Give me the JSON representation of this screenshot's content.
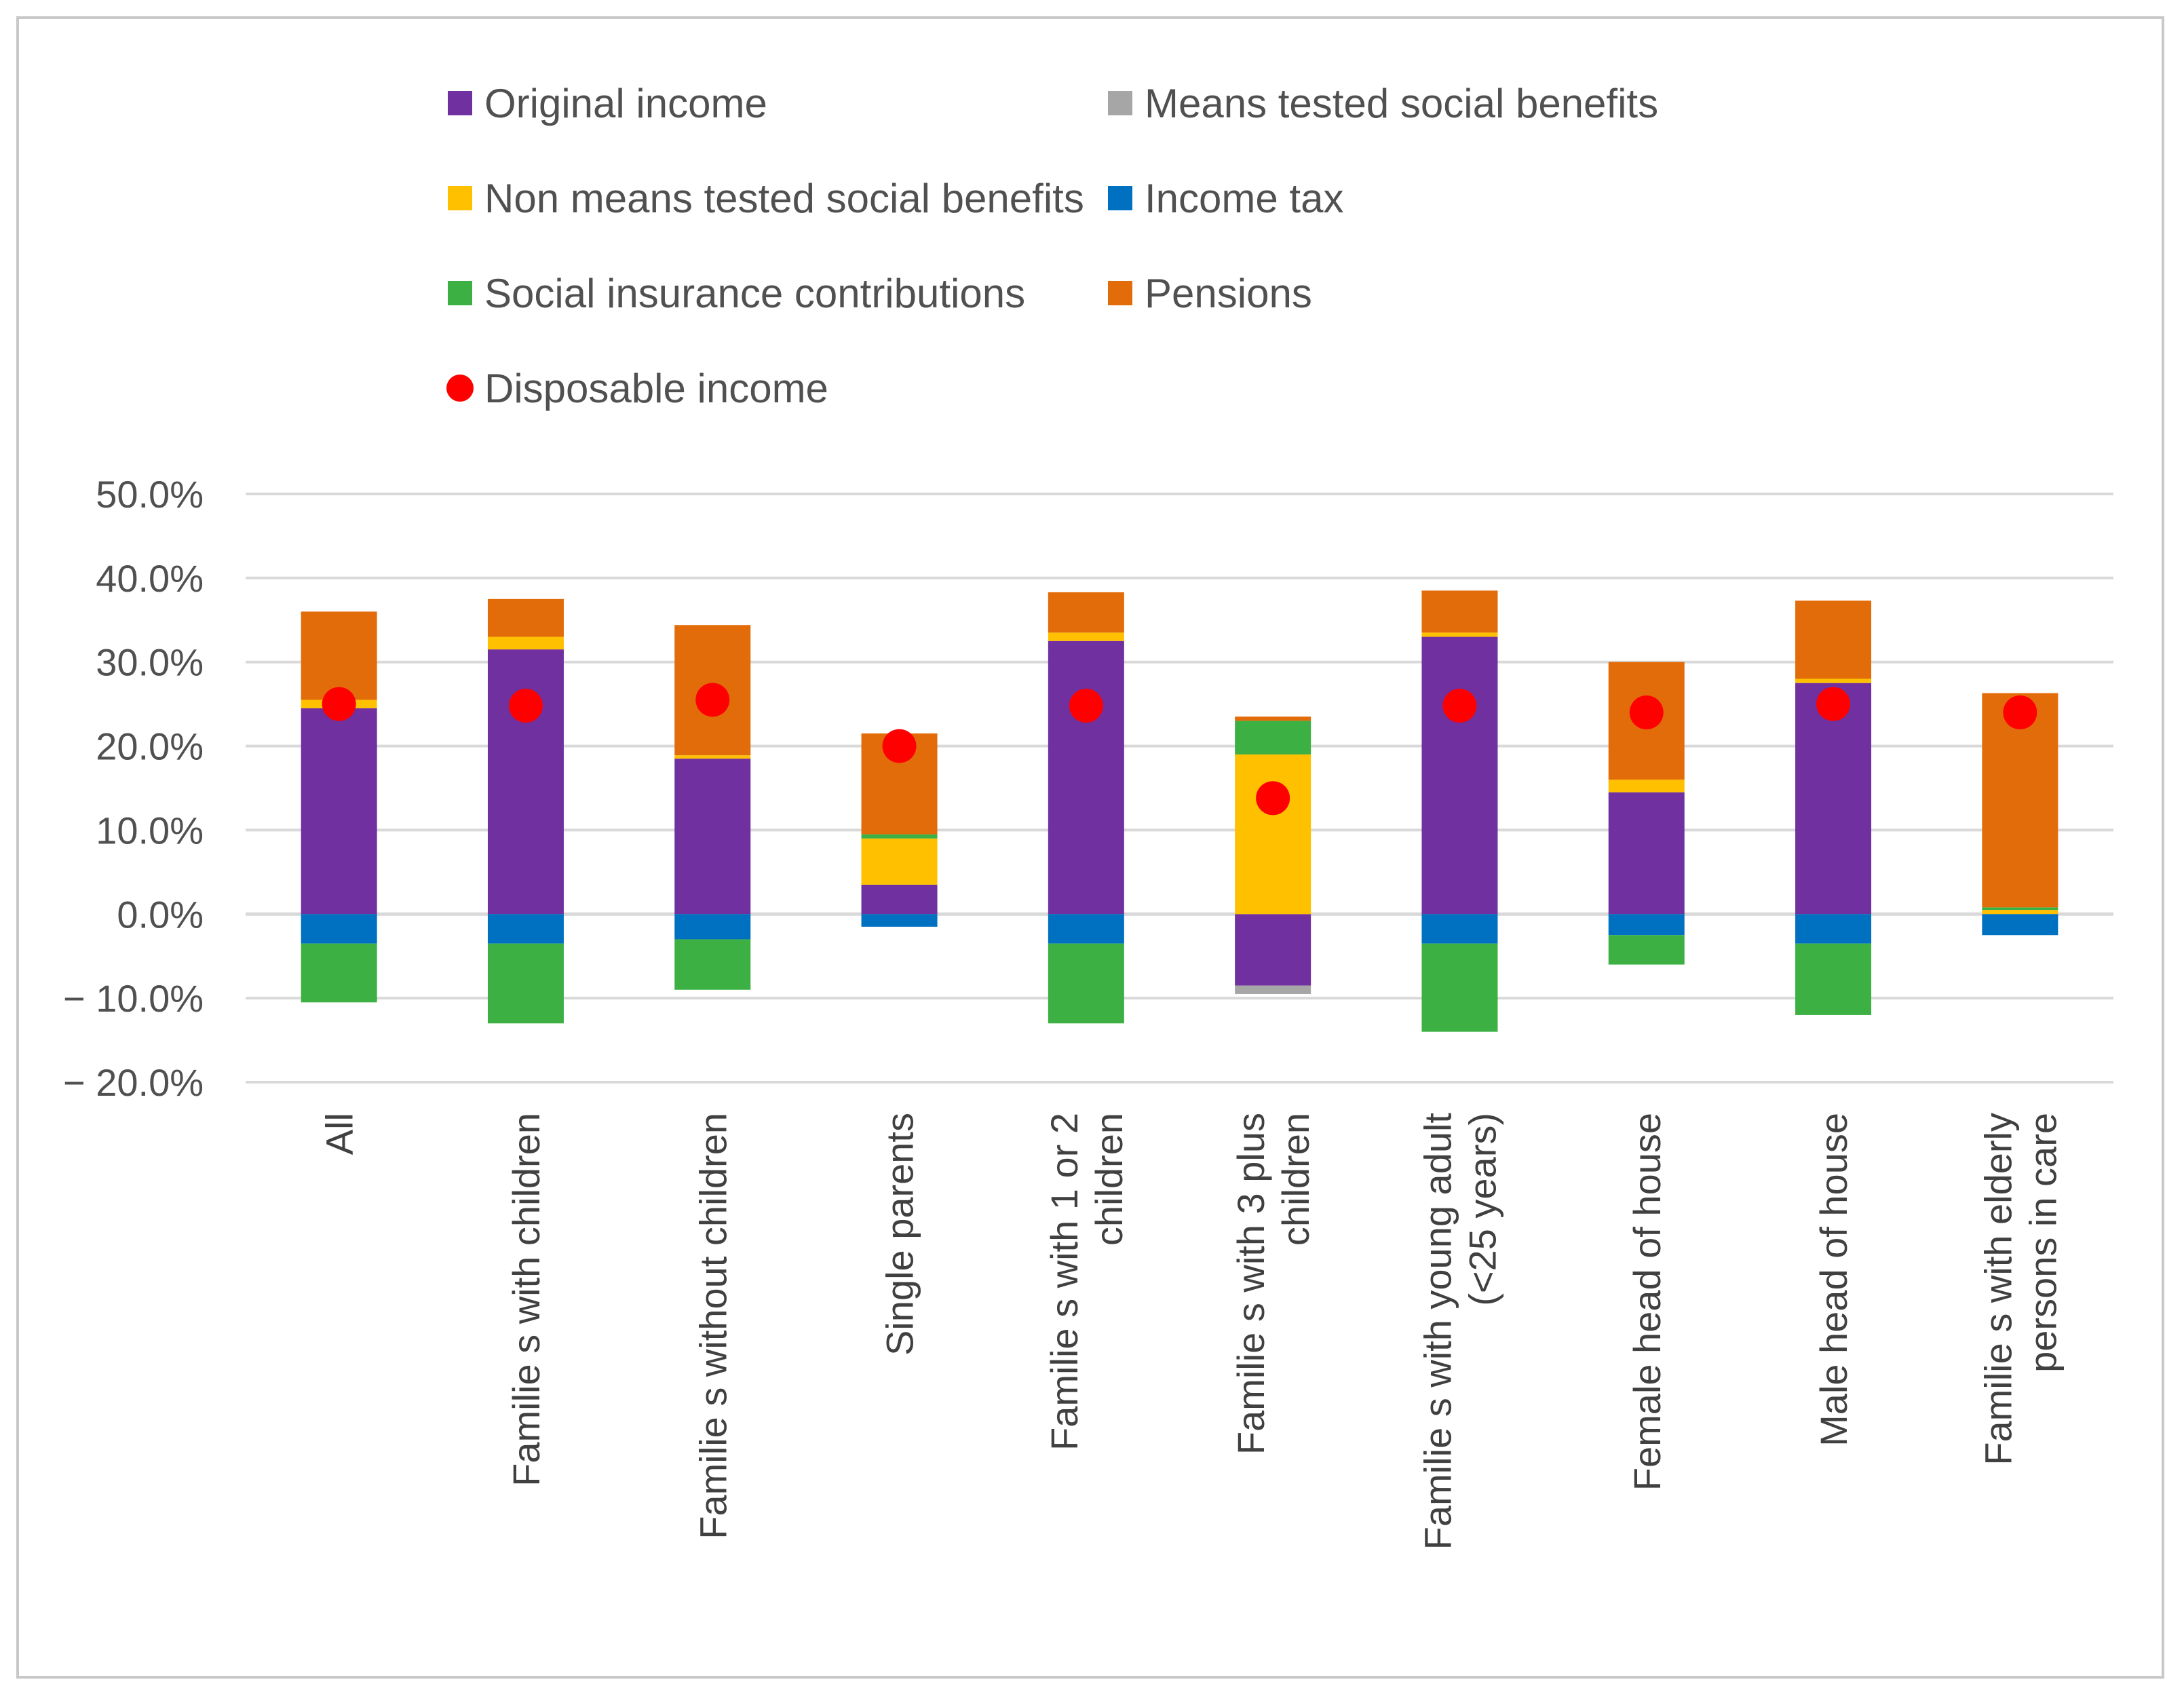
{
  "chart_data": {
    "type": "bar",
    "stacked": true,
    "title": "",
    "xlabel": "",
    "ylabel": "",
    "ylim": [
      -20,
      50
    ],
    "yticks": [
      50,
      40,
      30,
      20,
      10,
      0,
      -10,
      -20
    ],
    "ytick_labels": [
      "50.0%",
      "40.0%",
      "30.0%",
      "20.0%",
      "10.0%",
      "0.0%",
      "− 10.0%",
      "− 20.0%"
    ],
    "grid": true,
    "legend_position": "top",
    "categories": [
      "All",
      "Families with children",
      "Families without children",
      "Single parents",
      "Families with 1 or 2 children",
      "Families with 3 plus children",
      "Families with young adult (<25 years)",
      "Female head of house",
      "Male head of house",
      "Families with elderly persons in care"
    ],
    "category_label_lines": [
      [
        "All"
      ],
      [
        "Familie s with children"
      ],
      [
        "Familie s without children"
      ],
      [
        "Single parents"
      ],
      [
        "Familie s with 1 or 2",
        "children"
      ],
      [
        "Familie s with 3 plus",
        "children"
      ],
      [
        "Familie s with young adult",
        "(<25 years)"
      ],
      [
        "Female head of house"
      ],
      [
        "Male head of house"
      ],
      [
        "Familie s with elderly",
        "persons in care"
      ]
    ],
    "series": [
      {
        "name": "Original income",
        "color": "#7030a0",
        "values": [
          24.5,
          31.5,
          18.5,
          3.5,
          32.5,
          -8.5,
          33.0,
          14.5,
          27.5,
          0.0
        ]
      },
      {
        "name": "Means tested social benefits",
        "color": "#a6a6a6",
        "values": [
          0.0,
          0.0,
          0.0,
          0.0,
          0.0,
          -1.0,
          0.0,
          0.0,
          0.0,
          0.0
        ]
      },
      {
        "name": "Non means tested social benefits",
        "color": "#ffc000",
        "values": [
          1.0,
          1.5,
          0.4,
          5.5,
          1.0,
          19.0,
          0.5,
          1.5,
          0.5,
          0.5
        ]
      },
      {
        "name": "Income tax",
        "color": "#0070c0",
        "values": [
          -3.5,
          -3.5,
          -3.0,
          -1.5,
          -3.5,
          0.0,
          -3.5,
          -2.5,
          -3.5,
          -2.5
        ]
      },
      {
        "name": "Social insurance contributions",
        "color": "#3cb043",
        "values": [
          -7.0,
          -9.5,
          -6.0,
          0.5,
          -9.5,
          4.0,
          -10.5,
          -3.5,
          -8.5,
          0.3
        ]
      },
      {
        "name": "Pensions",
        "color": "#e36c0a",
        "values": [
          10.5,
          4.5,
          15.5,
          12.0,
          4.8,
          0.5,
          5.0,
          14.0,
          9.3,
          25.5
        ]
      }
    ],
    "scatter": {
      "name": "Disposable income",
      "color": "#ff0000",
      "values": [
        25.0,
        24.8,
        25.5,
        20.0,
        24.8,
        13.8,
        24.8,
        24.0,
        25.0,
        24.0
      ]
    }
  },
  "legend": [
    {
      "label": "Original income",
      "color": "#7030a0",
      "marker": "square"
    },
    {
      "label": "Means tested social benefits",
      "color": "#a6a6a6",
      "marker": "square"
    },
    {
      "label": "Non means tested social benefits",
      "color": "#ffc000",
      "marker": "square"
    },
    {
      "label": "Income tax",
      "color": "#0070c0",
      "marker": "square"
    },
    {
      "label": "Social insurance contributions",
      "color": "#3cb043",
      "marker": "square"
    },
    {
      "label": "Pensions",
      "color": "#e36c0a",
      "marker": "square"
    },
    {
      "label": "Disposable income",
      "color": "#ff0000",
      "marker": "circle"
    }
  ]
}
